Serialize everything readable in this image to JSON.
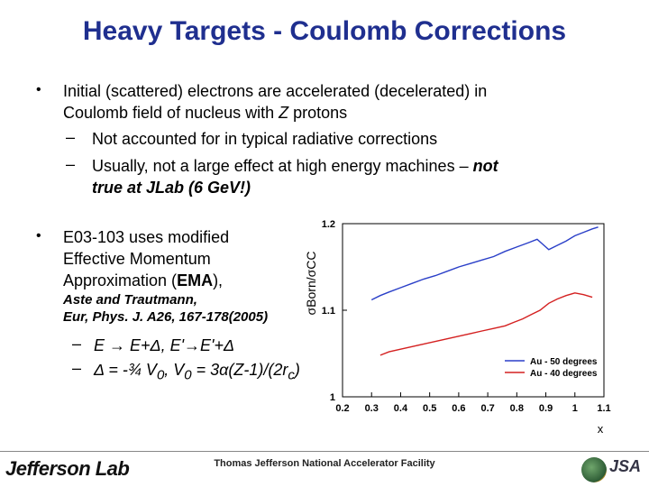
{
  "title": "Heavy Targets - Coulomb Corrections",
  "bullets": {
    "b1_line1": "Initial (scattered) electrons are accelerated (decelerated) in",
    "b1_line2a": "Coulomb field of nucleus with ",
    "b1_line2b": "Z",
    "b1_line2c": " protons",
    "sub1": "Not accounted for in typical radiative corrections",
    "sub2_line1a": "Usually, not a large effect at high energy machines – ",
    "sub2_line1b": "not",
    "sub2_line2": "true at JLab (6 GeV!)",
    "b2_line1": "E03-103 uses modified",
    "b2_line2": "Effective Momentum",
    "b2_line3a": "Approximation (",
    "b2_line3b": "EMA",
    "b2_line3c": "),",
    "ref_line1": "Aste and Trautmann,",
    "ref_line2": "Eur, Phys. J. A26, 167-178(2005)",
    "sub3": "E → E+Δ, E'→E'+Δ",
    "sub4a": "Δ = -¾ V",
    "sub4b": "0",
    "sub4c": ", V",
    "sub4d": "0",
    "sub4e": " = 3α(Z-1)/(2r",
    "sub4f": "c",
    "sub4g": ")"
  },
  "footer": {
    "lab_logo": "Jefferson Lab",
    "facility": "Thomas Jefferson National Accelerator Facility",
    "jsa_logo": "JSA"
  },
  "chart_data": {
    "type": "line",
    "ylabel": "σBorn/σCC",
    "xlabel": "x",
    "xlim": [
      0.2,
      1.1
    ],
    "ylim": [
      1.0,
      1.2
    ],
    "x_ticks": [
      "0.2",
      "0.3",
      "0.4",
      "0.5",
      "0.6",
      "0.7",
      "0.8",
      "0.9",
      "1",
      "1.1"
    ],
    "y_ticks": [
      "1",
      "1.1",
      "1.2"
    ],
    "legend_position": "bottom-right",
    "series": [
      {
        "name": "Au - 50 degrees",
        "color": "#2a3fc8",
        "x": [
          0.3,
          0.33,
          0.36,
          0.4,
          0.44,
          0.48,
          0.52,
          0.56,
          0.6,
          0.64,
          0.68,
          0.72,
          0.76,
          0.8,
          0.84,
          0.87,
          0.89,
          0.91,
          0.94,
          0.97,
          1.0,
          1.03,
          1.06,
          1.08
        ],
        "y": [
          1.112,
          1.117,
          1.121,
          1.126,
          1.131,
          1.136,
          1.14,
          1.145,
          1.15,
          1.154,
          1.158,
          1.162,
          1.168,
          1.173,
          1.178,
          1.182,
          1.176,
          1.17,
          1.175,
          1.18,
          1.186,
          1.19,
          1.194,
          1.196
        ]
      },
      {
        "name": "Au - 40 degrees",
        "color": "#d42020",
        "x": [
          0.33,
          0.36,
          0.4,
          0.44,
          0.48,
          0.52,
          0.56,
          0.6,
          0.64,
          0.68,
          0.72,
          0.76,
          0.79,
          0.82,
          0.85,
          0.88,
          0.91,
          0.94,
          0.97,
          1.0,
          1.03,
          1.06
        ],
        "y": [
          1.048,
          1.052,
          1.055,
          1.058,
          1.061,
          1.064,
          1.067,
          1.07,
          1.073,
          1.076,
          1.079,
          1.082,
          1.086,
          1.09,
          1.095,
          1.1,
          1.108,
          1.113,
          1.117,
          1.12,
          1.118,
          1.115
        ]
      }
    ]
  }
}
